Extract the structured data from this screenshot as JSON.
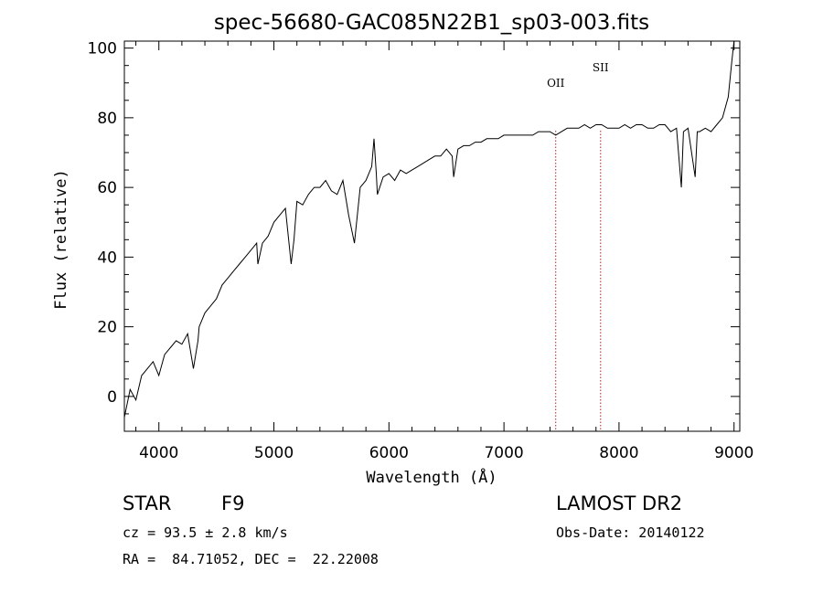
{
  "chart_data": {
    "type": "line",
    "title": "spec-56680-GAC085N22B1_sp03-003.fits",
    "xlabel": "Wavelength (Å)",
    "ylabel": "Flux (relative)",
    "xlim": [
      3700,
      9050
    ],
    "ylim": [
      -10,
      102
    ],
    "xticks": [
      4000,
      5000,
      6000,
      7000,
      8000,
      9000
    ],
    "yticks": [
      0,
      20,
      40,
      60,
      80,
      100
    ],
    "grid": false,
    "legend": "none",
    "line_color": "#000000",
    "marker_color": "#b22222",
    "x": [
      3700,
      3750,
      3800,
      3850,
      3900,
      3950,
      4000,
      4050,
      4100,
      4150,
      4200,
      4250,
      4300,
      4340,
      4350,
      4400,
      4450,
      4500,
      4550,
      4600,
      4650,
      4700,
      4750,
      4800,
      4850,
      4861,
      4900,
      4950,
      5000,
      5050,
      5100,
      5150,
      5175,
      5200,
      5250,
      5300,
      5350,
      5400,
      5450,
      5500,
      5550,
      5600,
      5650,
      5700,
      5750,
      5800,
      5850,
      5870,
      5890,
      5900,
      5950,
      6000,
      6050,
      6100,
      6150,
      6200,
      6250,
      6300,
      6350,
      6400,
      6450,
      6500,
      6550,
      6563,
      6600,
      6650,
      6700,
      6750,
      6800,
      6850,
      6900,
      6950,
      7000,
      7050,
      7100,
      7150,
      7200,
      7250,
      7300,
      7350,
      7400,
      7450,
      7500,
      7550,
      7600,
      7650,
      7700,
      7750,
      7800,
      7850,
      7900,
      7950,
      8000,
      8050,
      8100,
      8150,
      8200,
      8250,
      8300,
      8350,
      8400,
      8450,
      8500,
      8542,
      8560,
      8600,
      8662,
      8680,
      8700,
      8750,
      8800,
      8850,
      8900,
      8950,
      8980,
      9000,
      9010
    ],
    "y": [
      -6,
      2,
      -1,
      6,
      8,
      10,
      6,
      12,
      14,
      16,
      15,
      18,
      8,
      16,
      20,
      24,
      26,
      28,
      32,
      34,
      36,
      38,
      40,
      42,
      44,
      38,
      44,
      46,
      50,
      52,
      54,
      38,
      45,
      56,
      55,
      58,
      60,
      60,
      62,
      59,
      58,
      62,
      52,
      44,
      60,
      62,
      66,
      74,
      64,
      58,
      63,
      64,
      62,
      65,
      64,
      65,
      66,
      67,
      68,
      69,
      69,
      71,
      69,
      63,
      71,
      72,
      72,
      73,
      73,
      74,
      74,
      74,
      75,
      75,
      75,
      75,
      75,
      75,
      76,
      76,
      76,
      75,
      76,
      77,
      77,
      77,
      78,
      77,
      78,
      78,
      77,
      77,
      77,
      78,
      77,
      78,
      78,
      77,
      77,
      78,
      78,
      76,
      77,
      60,
      76,
      77,
      63,
      76,
      76,
      77,
      76,
      78,
      80,
      86,
      96,
      104,
      104
    ],
    "line_markers": [
      {
        "label": "OII",
        "x": 7450
      },
      {
        "label": "SII",
        "x": 7840
      }
    ],
    "info": {
      "class": "STAR",
      "subclass": "F9",
      "cz": "cz = 93.5 ± 2.8 km/s",
      "coords": "RA =  84.71052, DEC =  22.22008",
      "survey": "LAMOST DR2",
      "obsdate": "Obs-Date: 20140122"
    }
  }
}
